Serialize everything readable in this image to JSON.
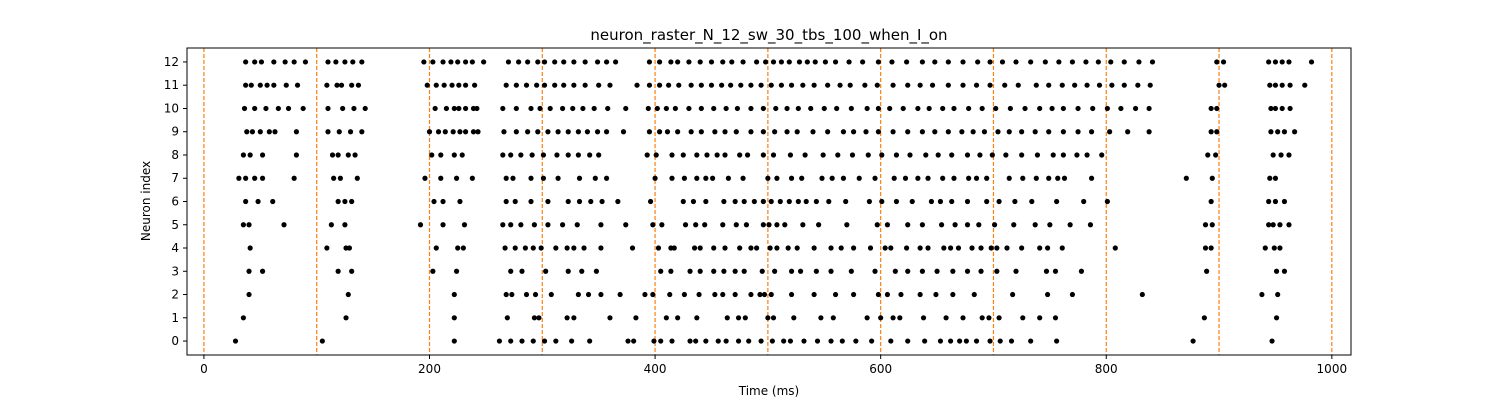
{
  "chart_data": {
    "type": "scatter",
    "title": "neuron_raster_N_12_sw_30_tbs_100_when_I_on",
    "xlabel": "Time (ms)",
    "ylabel": "Neuron index",
    "xlim": [
      -15,
      1017
    ],
    "ylim": [
      -0.6,
      12.6
    ],
    "xticks": [
      0,
      200,
      400,
      600,
      800,
      1000
    ],
    "yticks": [
      0,
      1,
      2,
      3,
      4,
      5,
      6,
      7,
      8,
      9,
      10,
      11,
      12
    ],
    "grid": false,
    "colors": {
      "spike": "#000000",
      "vline": "#ff7f0e",
      "axes": "#000000"
    },
    "vlines": [
      0,
      100,
      200,
      300,
      400,
      500,
      600,
      700,
      800,
      900,
      1000
    ],
    "spikes": [
      {
        "neuron": 0,
        "times": [
          28,
          105,
          222,
          262,
          272,
          282,
          292,
          302,
          312,
          326,
          342,
          376,
          381,
          399,
          405,
          415,
          431,
          436,
          445,
          456,
          463,
          474,
          483,
          494,
          504,
          514,
          520,
          532,
          544,
          556,
          566,
          578,
          592,
          609,
          624,
          639,
          653,
          662,
          670,
          676,
          685,
          697,
          706,
          716,
          733,
          756,
          877,
          947
        ]
      },
      {
        "neuron": 1,
        "times": [
          35,
          126,
          222,
          269,
          293,
          297,
          322,
          328,
          360,
          383,
          410,
          420,
          437,
          464,
          474,
          480,
          500,
          505,
          523,
          547,
          558,
          588,
          600,
          611,
          617,
          638,
          658,
          673,
          690,
          696,
          705,
          726,
          741,
          755,
          887,
          951
        ]
      },
      {
        "neuron": 2,
        "times": [
          40,
          128,
          222,
          268,
          273,
          286,
          294,
          308,
          332,
          341,
          352,
          369,
          391,
          398,
          413,
          426,
          439,
          453,
          460,
          471,
          485,
          493,
          497,
          503,
          521,
          541,
          560,
          576,
          598,
          606,
          618,
          635,
          649,
          664,
          683,
          717,
          748,
          770,
          832,
          938,
          952
        ]
      },
      {
        "neuron": 3,
        "times": [
          40,
          52,
          119,
          131,
          203,
          224,
          272,
          282,
          303,
          323,
          335,
          348,
          405,
          414,
          431,
          440,
          452,
          461,
          471,
          479,
          495,
          506,
          521,
          529,
          543,
          556,
          574,
          595,
          613,
          624,
          637,
          650,
          664,
          677,
          689,
          703,
          720,
          747,
          755,
          778,
          889,
          951,
          958
        ]
      },
      {
        "neuron": 4,
        "times": [
          41,
          109,
          126,
          129,
          206,
          225,
          230,
          267,
          276,
          285,
          292,
          299,
          312,
          322,
          328,
          337,
          352,
          380,
          403,
          414,
          417,
          435,
          440,
          452,
          462,
          475,
          485,
          490,
          502,
          508,
          518,
          526,
          541,
          556,
          565,
          576,
          591,
          604,
          609,
          623,
          635,
          642,
          656,
          662,
          669,
          681,
          689,
          698,
          703,
          712,
          725,
          741,
          748,
          761,
          808,
          888,
          893,
          941,
          949,
          954
        ]
      },
      {
        "neuron": 5,
        "times": [
          35,
          40,
          71,
          113,
          125,
          192,
          212,
          231,
          265,
          272,
          281,
          293,
          305,
          318,
          331,
          352,
          374,
          398,
          406,
          427,
          436,
          444,
          460,
          472,
          481,
          496,
          501,
          508,
          515,
          531,
          545,
          570,
          597,
          606,
          624,
          637,
          654,
          666,
          677,
          687,
          701,
          718,
          737,
          750,
          768,
          786,
          888,
          894,
          944,
          948,
          954,
          962
        ]
      },
      {
        "neuron": 6,
        "times": [
          37,
          48,
          61,
          119,
          125,
          131,
          204,
          212,
          227,
          268,
          276,
          290,
          305,
          323,
          333,
          343,
          353,
          367,
          396,
          425,
          434,
          445,
          461,
          471,
          479,
          488,
          496,
          503,
          511,
          519,
          527,
          534,
          543,
          554,
          569,
          590,
          601,
          614,
          628,
          645,
          653,
          663,
          677,
          694,
          705,
          719,
          734,
          756,
          780,
          801,
          893,
          944,
          950,
          958
        ]
      },
      {
        "neuron": 7,
        "times": [
          31,
          37,
          45,
          52,
          80,
          115,
          121,
          136,
          196,
          210,
          224,
          238,
          268,
          274,
          290,
          301,
          314,
          333,
          347,
          357,
          400,
          415,
          426,
          437,
          445,
          451,
          465,
          478,
          500,
          508,
          521,
          530,
          548,
          557,
          567,
          581,
          595,
          612,
          622,
          633,
          642,
          655,
          665,
          678,
          685,
          694,
          714,
          726,
          738,
          749,
          757,
          763,
          787,
          871,
          894,
          945,
          950
        ]
      },
      {
        "neuron": 8,
        "times": [
          35,
          41,
          52,
          82,
          114,
          119,
          128,
          134,
          202,
          210,
          222,
          229,
          265,
          272,
          281,
          291,
          301,
          313,
          323,
          332,
          342,
          350,
          393,
          401,
          415,
          425,
          437,
          446,
          455,
          462,
          475,
          482,
          496,
          505,
          520,
          533,
          549,
          562,
          575,
          589,
          601,
          614,
          626,
          640,
          651,
          663,
          677,
          688,
          699,
          711,
          725,
          739,
          753,
          762,
          774,
          783,
          796,
          890,
          897,
          948,
          955,
          962
        ]
      },
      {
        "neuron": 9,
        "times": [
          38,
          43,
          50,
          58,
          63,
          82,
          110,
          120,
          130,
          140,
          200,
          208,
          214,
          221,
          227,
          232,
          239,
          243,
          266,
          277,
          287,
          296,
          305,
          314,
          323,
          332,
          340,
          349,
          357,
          372,
          395,
          404,
          411,
          420,
          432,
          441,
          453,
          462,
          472,
          485,
          496,
          506,
          517,
          526,
          540,
          553,
          567,
          576,
          587,
          598,
          611,
          624,
          637,
          648,
          660,
          672,
          682,
          692,
          704,
          714,
          725,
          737,
          749,
          762,
          775,
          787,
          803,
          819,
          838,
          893,
          898,
          946,
          952,
          958,
          967
        ]
      },
      {
        "neuron": 10,
        "times": [
          36,
          45,
          55,
          66,
          75,
          88,
          110,
          123,
          133,
          143,
          205,
          215,
          222,
          226,
          232,
          239,
          242,
          265,
          277,
          290,
          298,
          307,
          318,
          327,
          336,
          346,
          358,
          374,
          394,
          402,
          410,
          418,
          430,
          441,
          452,
          463,
          473,
          485,
          496,
          507,
          517,
          527,
          538,
          550,
          561,
          574,
          588,
          598,
          608,
          620,
          633,
          643,
          655,
          665,
          678,
          690,
          702,
          715,
          728,
          741,
          752,
          762,
          775,
          788,
          801,
          813,
          826,
          838,
          893,
          898,
          946,
          950,
          956,
          963
        ]
      },
      {
        "neuron": 11,
        "times": [
          37,
          42,
          50,
          56,
          62,
          73,
          83,
          109,
          118,
          122,
          131,
          137,
          198,
          206,
          213,
          220,
          226,
          232,
          240,
          268,
          277,
          286,
          295,
          302,
          311,
          319,
          328,
          338,
          350,
          360,
          384,
          395,
          404,
          412,
          421,
          432,
          441,
          450,
          459,
          467,
          476,
          485,
          494,
          503,
          512,
          521,
          531,
          541,
          553,
          564,
          573,
          586,
          597,
          611,
          624,
          635,
          646,
          660,
          673,
          685,
          697,
          710,
          722,
          738,
          749,
          761,
          772,
          783,
          794,
          805,
          816,
          828,
          839,
          900,
          905,
          945,
          950,
          956,
          963,
          976
        ]
      },
      {
        "neuron": 12,
        "times": [
          37,
          45,
          51,
          62,
          72,
          80,
          90,
          110,
          117,
          125,
          132,
          140,
          195,
          203,
          212,
          219,
          225,
          232,
          238,
          248,
          270,
          279,
          287,
          296,
          302,
          311,
          319,
          328,
          338,
          349,
          357,
          365,
          395,
          404,
          414,
          420,
          430,
          440,
          450,
          460,
          468,
          478,
          490,
          498,
          505,
          512,
          519,
          528,
          535,
          542,
          551,
          560,
          572,
          584,
          598,
          610,
          623,
          637,
          648,
          660,
          673,
          686,
          697,
          708,
          720,
          733,
          746,
          758,
          770,
          782,
          793,
          804,
          816,
          829,
          841,
          898,
          904,
          944,
          950,
          956,
          962,
          982
        ]
      }
    ]
  }
}
